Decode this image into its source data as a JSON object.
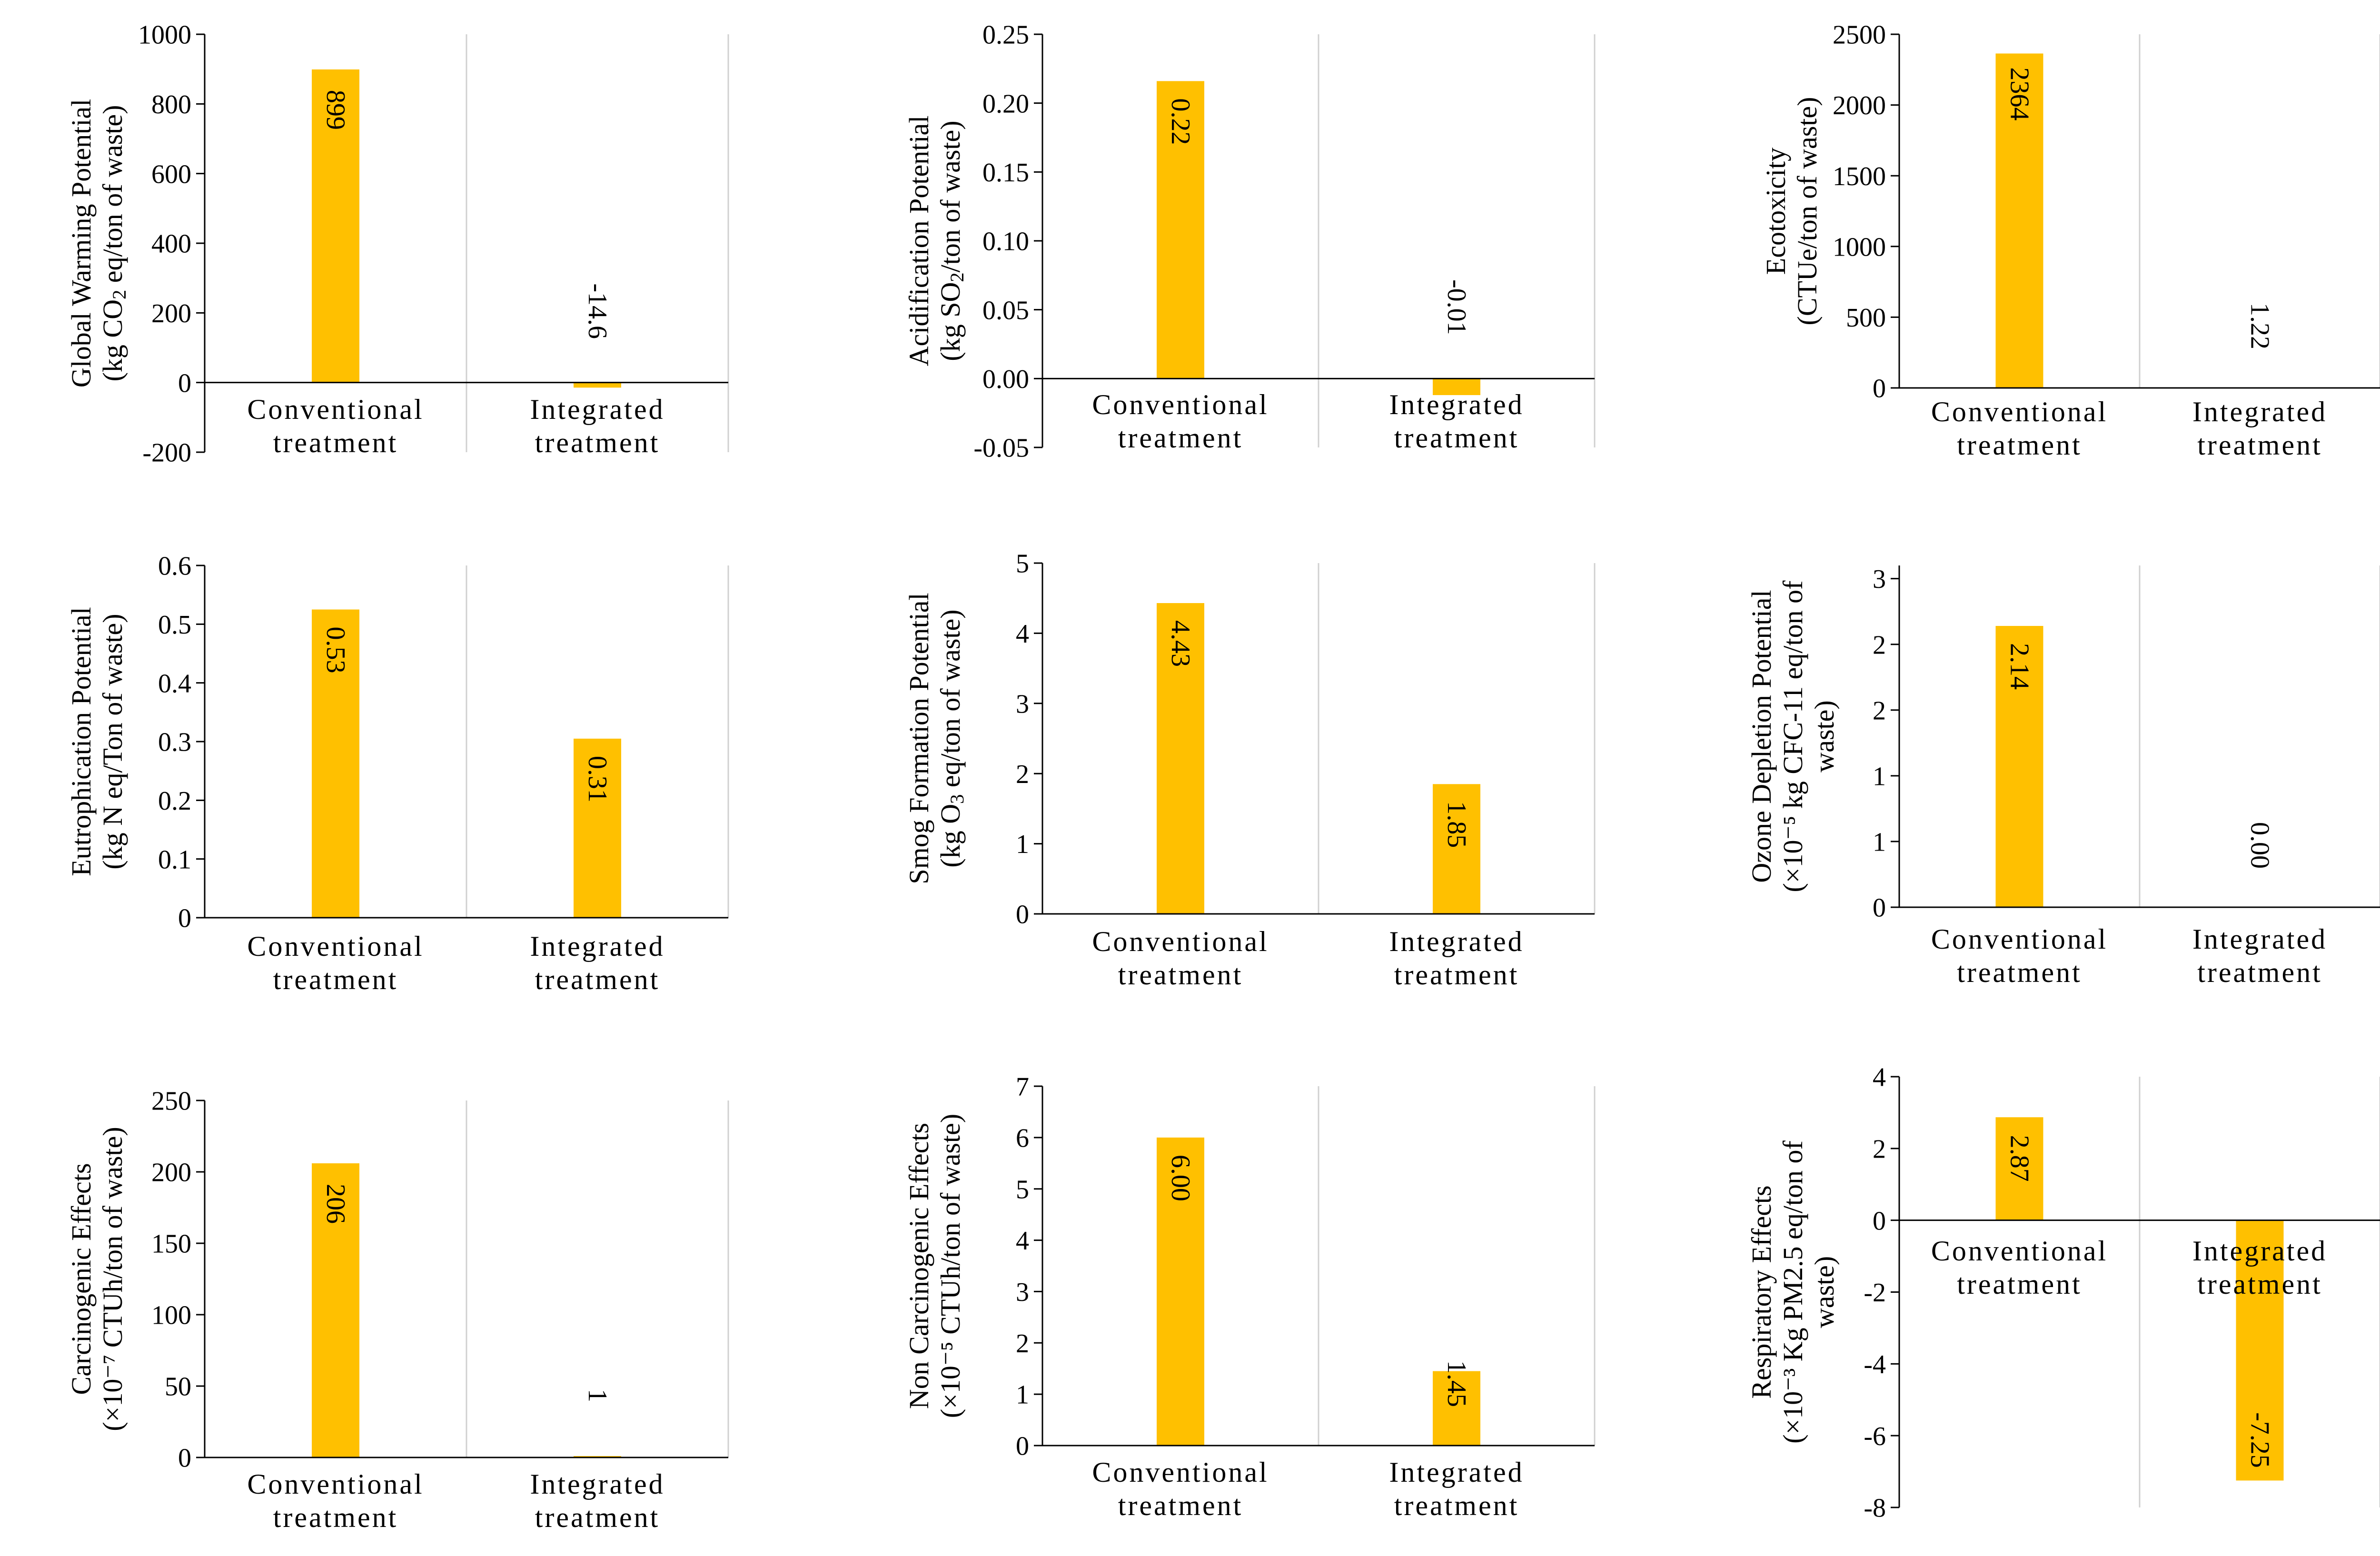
{
  "bar_color": "#FFC000",
  "chart_data": [
    {
      "type": "bar",
      "categories": [
        "Conventional\ntreatment",
        "Integrated\ntreatment"
      ],
      "values": [
        899,
        -14.6
      ],
      "data_labels": [
        "899",
        "-14.6"
      ],
      "ylabel": [
        "Global Warming Potential",
        "(kg CO|2| eq/ton of waste)"
      ],
      "ylim": [
        -200,
        1000
      ],
      "yticks": [
        "-200",
        "0",
        "200",
        "400",
        "600",
        "800",
        "1000"
      ],
      "tick_values": [
        -200,
        0,
        200,
        400,
        600,
        800,
        1000
      ]
    },
    {
      "type": "bar",
      "categories": [
        "Conventional\ntreatment",
        "Integrated\ntreatment"
      ],
      "values": [
        0.216,
        -0.012
      ],
      "data_labels": [
        "0.22",
        "-0.01"
      ],
      "ylabel": [
        "Acidification Potential",
        "(kg SO|2|/ton of waste)"
      ],
      "ylim": [
        -0.05,
        0.25
      ],
      "yticks": [
        "-0.05",
        "0.00",
        "0.05",
        "0.10",
        "0.15",
        "0.20",
        "0.25"
      ],
      "tick_values": [
        -0.05,
        0,
        0.05,
        0.1,
        0.15,
        0.2,
        0.25
      ]
    },
    {
      "type": "bar",
      "categories": [
        "Conventional\ntreatment",
        "Integrated\ntreatment"
      ],
      "values": [
        2364,
        1.22
      ],
      "data_labels": [
        "2364",
        "1.22"
      ],
      "ylabel": [
        "Ecotoxicity",
        "(CTUe/ton of waste)"
      ],
      "ylim": [
        0,
        2500
      ],
      "yticks": [
        "0",
        "500",
        "1000",
        "1500",
        "2000",
        "2500"
      ],
      "tick_values": [
        0,
        500,
        1000,
        1500,
        2000,
        2500
      ]
    },
    {
      "type": "bar",
      "categories": [
        "Conventional\ntreatment",
        "Integrated\ntreatment"
      ],
      "values": [
        0.525,
        0.305
      ],
      "data_labels": [
        "0.53",
        "0.31"
      ],
      "ylabel": [
        "Eutrophication Potential",
        "(kg N eq/Ton of waste)"
      ],
      "ylim": [
        0,
        0.6
      ],
      "yticks": [
        "0",
        "0.1",
        "0.2",
        "0.3",
        "0.4",
        "0.5",
        "0.6"
      ],
      "tick_values": [
        0,
        0.1,
        0.2,
        0.3,
        0.4,
        0.5,
        0.6
      ]
    },
    {
      "type": "bar",
      "categories": [
        "Conventional\ntreatment",
        "Integrated\ntreatment"
      ],
      "values": [
        4.43,
        1.85
      ],
      "data_labels": [
        "4.43",
        "1.85"
      ],
      "ylabel": [
        "Smog Formation Potential",
        "(kg O|3| eq/ton of waste)"
      ],
      "ylim": [
        0,
        5
      ],
      "yticks": [
        "0",
        "1",
        "2",
        "3",
        "4",
        "5"
      ],
      "tick_values": [
        0,
        1,
        2,
        3,
        4,
        5
      ]
    },
    {
      "type": "bar",
      "categories": [
        "Conventional\ntreatment",
        "Integrated\ntreatment"
      ],
      "values": [
        2.14,
        0.0
      ],
      "data_labels": [
        "2.14",
        "0.00"
      ],
      "ylabel": [
        "Ozone Depletion Potential",
        "(×10⁻⁵ kg CFC-11 eq/ton of",
        "waste)"
      ],
      "ylim": [
        0,
        2.6
      ],
      "yticks": [
        "0",
        "1",
        "1",
        "2",
        "2",
        "3"
      ],
      "tick_values": [
        0,
        0.5,
        1.0,
        1.5,
        2.0,
        2.5
      ]
    },
    {
      "type": "bar",
      "categories": [
        "Conventional\ntreatment",
        "Integrated\ntreatment"
      ],
      "values": [
        206,
        1
      ],
      "data_labels": [
        "206",
        "1"
      ],
      "ylabel": [
        "Carcinogenic Effects",
        "(×10⁻⁷ CTUh/ton of waste)"
      ],
      "ylim": [
        0,
        250
      ],
      "yticks": [
        "0",
        "50",
        "100",
        "150",
        "200",
        "250"
      ],
      "tick_values": [
        0,
        50,
        100,
        150,
        200,
        250
      ]
    },
    {
      "type": "bar",
      "categories": [
        "Conventional\ntreatment",
        "Integrated\ntreatment"
      ],
      "values": [
        6.0,
        1.45
      ],
      "data_labels": [
        "6.00",
        "1.45"
      ],
      "ylabel": [
        "Non Carcinogenic Effects",
        "(×10⁻⁵ CTUh/ton of waste)"
      ],
      "ylim": [
        0,
        7
      ],
      "yticks": [
        "0",
        "1",
        "2",
        "3",
        "4",
        "5",
        "6",
        "7"
      ],
      "tick_values": [
        0,
        1,
        2,
        3,
        4,
        5,
        6,
        7
      ]
    },
    {
      "type": "bar",
      "categories": [
        "Conventional\ntreatment",
        "Integrated\ntreatment"
      ],
      "values": [
        2.87,
        -7.25
      ],
      "data_labels": [
        "2.87",
        "-7.25"
      ],
      "ylabel": [
        "Respiratory Effects",
        "(×10⁻³ Kg PM2.5 eq/ton of",
        "waste)"
      ],
      "ylim": [
        -8,
        4
      ],
      "yticks": [
        "-8",
        "-6",
        "-4",
        "-2",
        "0",
        "2",
        "4"
      ],
      "tick_values": [
        -8,
        -6,
        -4,
        -2,
        0,
        2,
        4
      ]
    }
  ]
}
